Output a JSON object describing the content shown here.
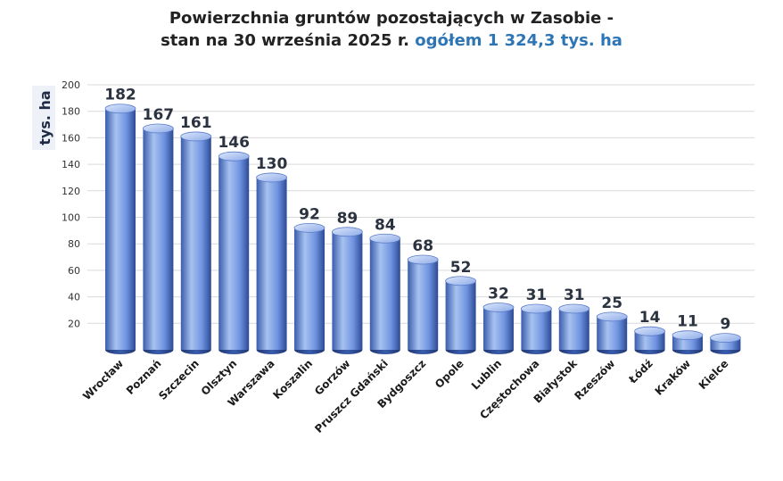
{
  "title_line1": "Powierzchnia gruntów pozostających  w Zasobie -",
  "title_line2_main": "stan na 30 września 2025 r.",
  "title_line2_highlight": "ogółem 1 324,3 tys. ha",
  "colors": {
    "bar_light": "#b9cff3",
    "bar_mid": "#6f93e0",
    "bar_dark": "#2c4a94",
    "highlight": "#2e75b6",
    "grid": "#d9d9d9"
  },
  "chart_data": {
    "type": "bar",
    "ylabel": "tys. ha",
    "ylim": [
      0,
      200
    ],
    "yticks": [
      20,
      40,
      60,
      80,
      100,
      120,
      140,
      160,
      180,
      200
    ],
    "grid": true,
    "categories": [
      "Wrocław",
      "Poznań",
      "Szczecin",
      "Olsztyn",
      "Warszawa",
      "Koszalin",
      "Gorzów",
      "Pruszcz Gdański",
      "Bydgoszcz",
      "Opole",
      "Lublin",
      "Częstochowa",
      "Białystok",
      "Rzeszów",
      "Łódź",
      "Kraków",
      "Kielce"
    ],
    "values": [
      182,
      167,
      161,
      146,
      130,
      92,
      89,
      84,
      68,
      52,
      32,
      31,
      31,
      25,
      14,
      11,
      9
    ],
    "data_labels": [
      "182",
      "167",
      "161",
      "146",
      "130",
      "92",
      "89",
      "84",
      "68",
      "52",
      "32",
      "31",
      "31",
      "25",
      "14",
      "11",
      "9"
    ]
  }
}
